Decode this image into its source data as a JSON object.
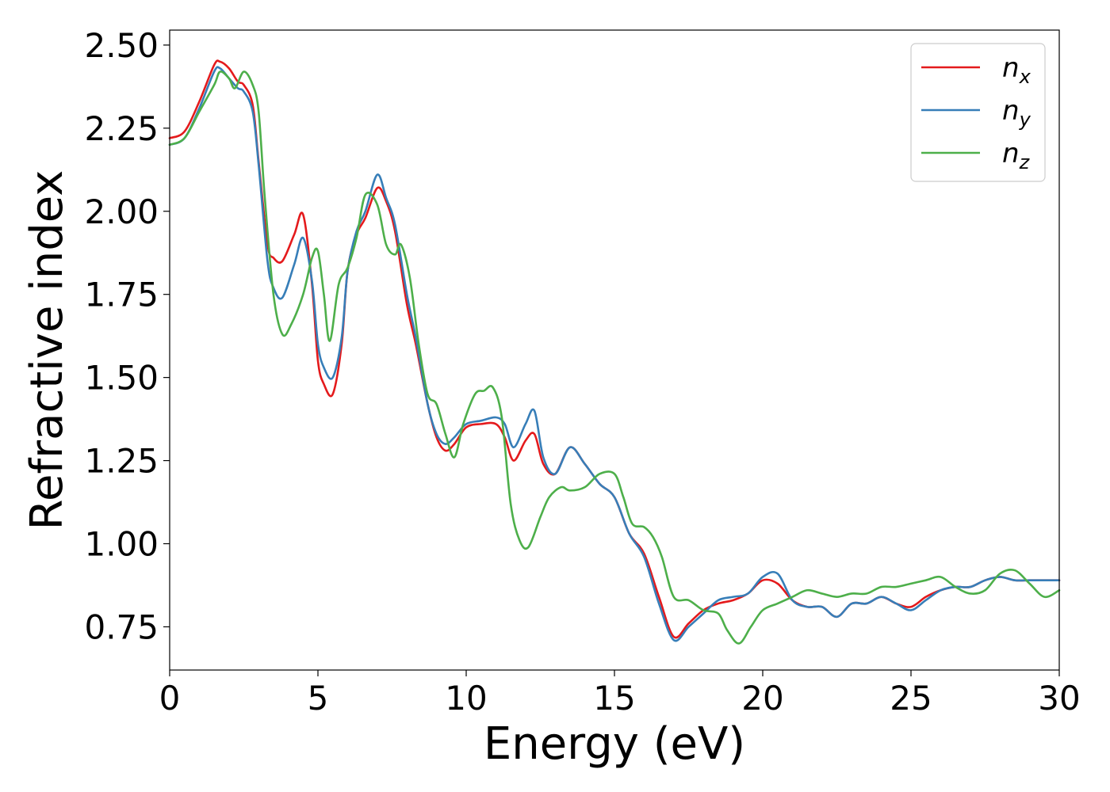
{
  "chart_data": {
    "type": "line",
    "xlabel": "Energy (eV)",
    "ylabel": "Refractive index",
    "xlim": [
      0,
      30
    ],
    "ylim": [
      0.62,
      2.545
    ],
    "xticks": [
      0,
      5,
      10,
      15,
      20,
      25,
      30
    ],
    "xtick_labels": [
      "0",
      "5",
      "10",
      "15",
      "20",
      "25",
      "30"
    ],
    "yticks": [
      0.75,
      1.0,
      1.25,
      1.5,
      1.75,
      2.0,
      2.25,
      2.5
    ],
    "ytick_labels": [
      "0.75",
      "1.00",
      "1.25",
      "1.50",
      "1.75",
      "2.00",
      "2.25",
      "2.50"
    ],
    "grid": false,
    "legend_position": "top-right",
    "series": [
      {
        "name": "n",
        "subscript": "x",
        "color": "#e41a1c",
        "x": [
          0,
          0.5,
          1.0,
          1.5,
          1.7,
          2.0,
          2.3,
          2.5,
          2.8,
          3.0,
          3.3,
          3.5,
          3.8,
          4.2,
          4.5,
          4.8,
          5.0,
          5.2,
          5.5,
          5.8,
          6.0,
          6.3,
          6.6,
          7.0,
          7.3,
          7.6,
          8.0,
          8.3,
          8.7,
          9.0,
          9.3,
          9.6,
          10.0,
          10.5,
          11.0,
          11.3,
          11.6,
          12.0,
          12.3,
          12.6,
          13.0,
          13.5,
          14.0,
          14.5,
          15.0,
          15.5,
          16.0,
          16.5,
          17.0,
          17.5,
          18.0,
          18.5,
          19.0,
          19.5,
          20.0,
          20.5,
          21.0,
          21.5,
          22.0,
          22.5,
          23.0,
          23.5,
          24.0,
          24.5,
          25.0,
          25.5,
          26.0,
          26.5,
          27.0,
          27.5,
          28.0,
          28.5,
          29.0,
          29.5,
          30.0
        ],
        "y": [
          2.22,
          2.24,
          2.33,
          2.44,
          2.45,
          2.43,
          2.39,
          2.38,
          2.32,
          2.15,
          1.9,
          1.86,
          1.85,
          1.93,
          1.99,
          1.78,
          1.55,
          1.48,
          1.45,
          1.6,
          1.82,
          1.93,
          1.98,
          2.07,
          2.03,
          1.94,
          1.72,
          1.6,
          1.42,
          1.32,
          1.28,
          1.3,
          1.35,
          1.36,
          1.36,
          1.32,
          1.25,
          1.31,
          1.33,
          1.24,
          1.21,
          1.29,
          1.24,
          1.18,
          1.14,
          1.03,
          0.97,
          0.84,
          0.72,
          0.76,
          0.8,
          0.82,
          0.83,
          0.85,
          0.89,
          0.88,
          0.83,
          0.81,
          0.81,
          0.78,
          0.82,
          0.82,
          0.84,
          0.82,
          0.81,
          0.84,
          0.86,
          0.87,
          0.87,
          0.89,
          0.9,
          0.89,
          0.89,
          0.89,
          0.89
        ]
      },
      {
        "name": "n",
        "subscript": "y",
        "color": "#377eb8",
        "x": [
          0,
          0.5,
          1.0,
          1.5,
          1.7,
          2.0,
          2.3,
          2.5,
          2.8,
          3.0,
          3.3,
          3.5,
          3.8,
          4.2,
          4.5,
          4.8,
          5.0,
          5.2,
          5.5,
          5.8,
          6.0,
          6.3,
          6.6,
          7.0,
          7.3,
          7.6,
          8.0,
          8.3,
          8.7,
          9.0,
          9.3,
          9.6,
          10.0,
          10.5,
          11.0,
          11.3,
          11.6,
          12.0,
          12.3,
          12.6,
          13.0,
          13.5,
          14.0,
          14.5,
          15.0,
          15.5,
          16.0,
          16.5,
          17.0,
          17.5,
          18.0,
          18.5,
          19.0,
          19.5,
          20.0,
          20.5,
          21.0,
          21.5,
          22.0,
          22.5,
          23.0,
          23.5,
          24.0,
          24.5,
          25.0,
          25.5,
          26.0,
          26.5,
          27.0,
          27.5,
          28.0,
          28.5,
          29.0,
          29.5,
          30.0
        ],
        "y": [
          2.2,
          2.22,
          2.31,
          2.42,
          2.43,
          2.4,
          2.37,
          2.36,
          2.3,
          2.14,
          1.85,
          1.77,
          1.74,
          1.84,
          1.92,
          1.79,
          1.6,
          1.53,
          1.5,
          1.62,
          1.82,
          1.94,
          2.0,
          2.11,
          2.04,
          1.96,
          1.75,
          1.62,
          1.42,
          1.33,
          1.3,
          1.32,
          1.36,
          1.37,
          1.38,
          1.36,
          1.29,
          1.36,
          1.4,
          1.26,
          1.21,
          1.29,
          1.24,
          1.18,
          1.14,
          1.03,
          0.96,
          0.82,
          0.71,
          0.75,
          0.79,
          0.83,
          0.84,
          0.85,
          0.9,
          0.91,
          0.83,
          0.81,
          0.81,
          0.78,
          0.82,
          0.82,
          0.84,
          0.82,
          0.8,
          0.83,
          0.86,
          0.87,
          0.87,
          0.89,
          0.9,
          0.89,
          0.89,
          0.89,
          0.89
        ]
      },
      {
        "name": "n",
        "subscript": "z",
        "color": "#4daf4a",
        "x": [
          0,
          0.5,
          1.0,
          1.5,
          1.7,
          2.0,
          2.2,
          2.5,
          2.8,
          3.0,
          3.2,
          3.5,
          3.8,
          4.1,
          4.5,
          4.8,
          5.0,
          5.2,
          5.4,
          5.7,
          6.0,
          6.3,
          6.6,
          7.0,
          7.3,
          7.6,
          7.8,
          8.1,
          8.4,
          8.7,
          9.0,
          9.3,
          9.6,
          9.9,
          10.3,
          10.6,
          10.9,
          11.2,
          11.5,
          11.8,
          12.1,
          12.5,
          12.8,
          13.2,
          13.5,
          14.0,
          14.5,
          15.0,
          15.3,
          15.6,
          16.0,
          16.3,
          16.6,
          17.0,
          17.5,
          18.0,
          18.5,
          18.8,
          19.2,
          19.6,
          20.0,
          20.5,
          21.0,
          21.5,
          22.0,
          22.5,
          23.0,
          23.5,
          24.0,
          24.5,
          25.0,
          25.5,
          26.0,
          26.5,
          27.0,
          27.5,
          28.0,
          28.5,
          29.0,
          29.5,
          30.0
        ],
        "y": [
          2.2,
          2.22,
          2.3,
          2.38,
          2.42,
          2.4,
          2.37,
          2.42,
          2.38,
          2.3,
          2.05,
          1.75,
          1.63,
          1.66,
          1.75,
          1.86,
          1.88,
          1.75,
          1.61,
          1.78,
          1.83,
          1.92,
          2.05,
          2.02,
          1.9,
          1.87,
          1.9,
          1.8,
          1.6,
          1.45,
          1.42,
          1.33,
          1.26,
          1.36,
          1.45,
          1.46,
          1.47,
          1.38,
          1.12,
          1.01,
          0.99,
          1.08,
          1.14,
          1.17,
          1.16,
          1.17,
          1.21,
          1.21,
          1.14,
          1.06,
          1.05,
          1.02,
          0.96,
          0.84,
          0.83,
          0.8,
          0.79,
          0.74,
          0.7,
          0.75,
          0.8,
          0.82,
          0.84,
          0.86,
          0.85,
          0.84,
          0.85,
          0.85,
          0.87,
          0.87,
          0.88,
          0.89,
          0.9,
          0.87,
          0.85,
          0.86,
          0.91,
          0.92,
          0.88,
          0.84,
          0.86
        ]
      }
    ]
  }
}
